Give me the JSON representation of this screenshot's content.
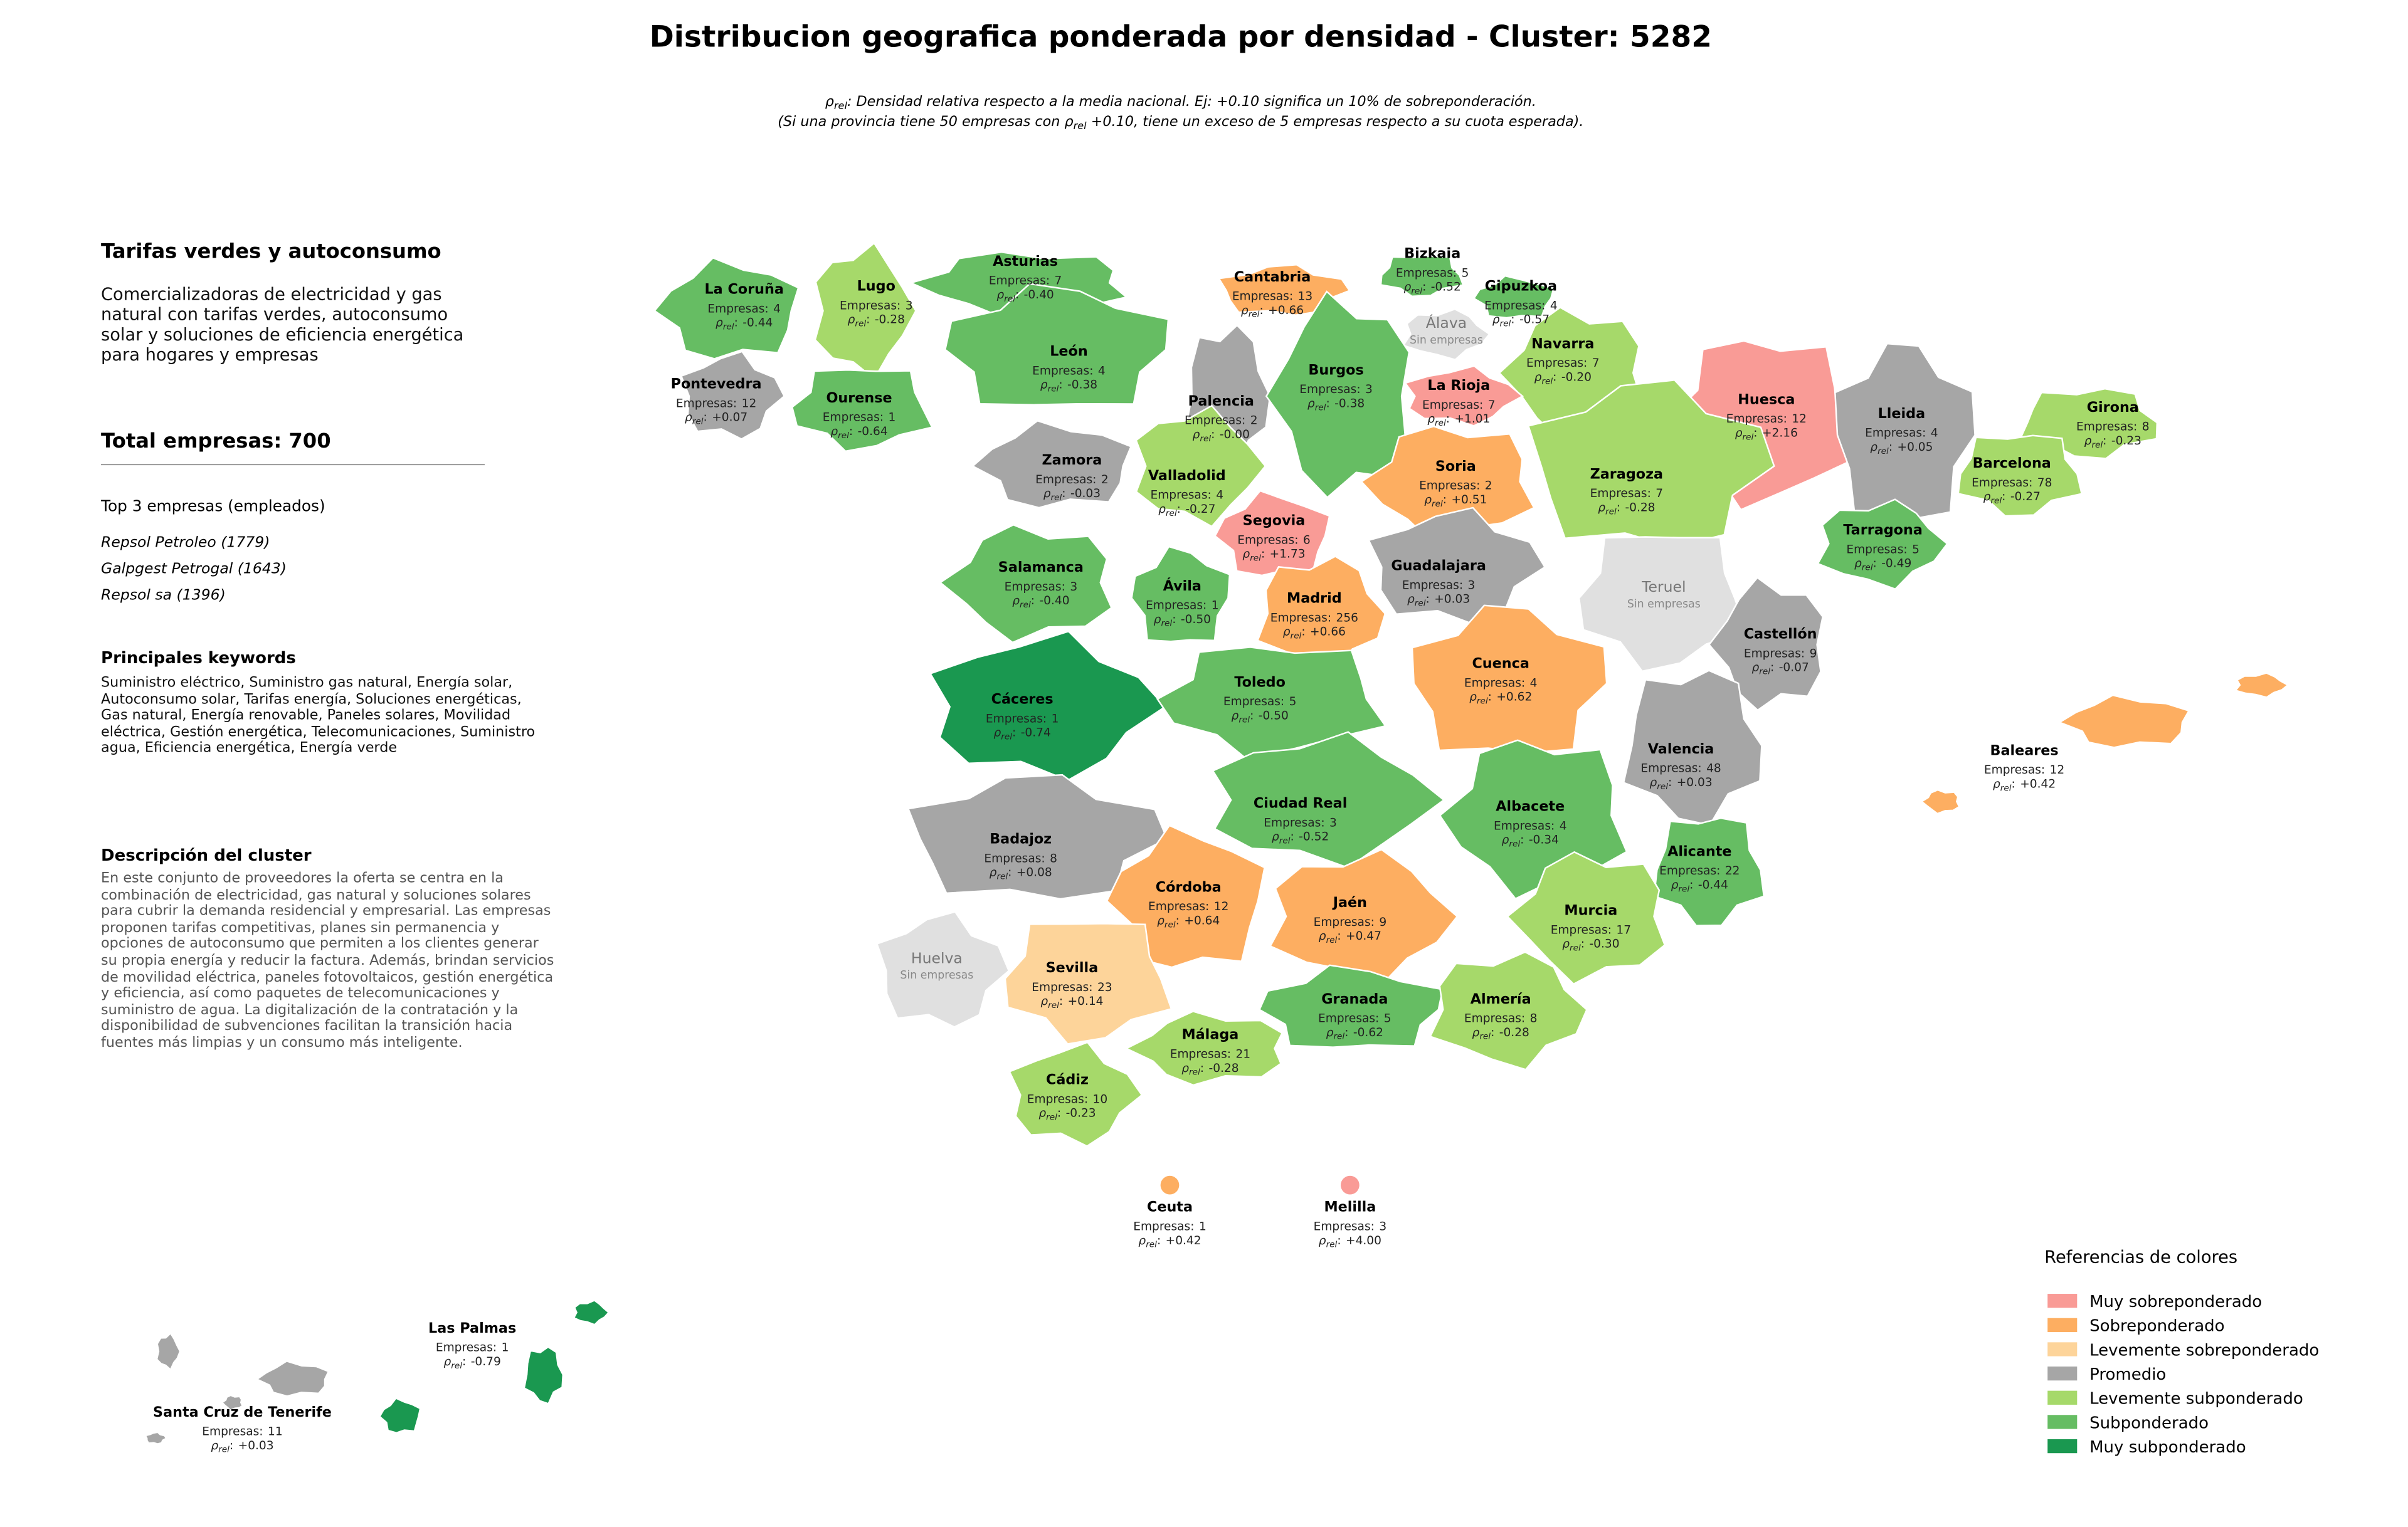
{
  "title": "Distribucion geografica ponderada por densidad - Cluster: 5282",
  "subtitle": {
    "line1": {
      "symbol": "ρ",
      "sub": "rel",
      "text": ": Densidad relativa respecto a la media nacional. Ej: +0.10 significa un 10% de sobreponderación."
    },
    "line2": {
      "before": "(Si una provincia tiene 50 empresas con ",
      "symbol": "ρ",
      "sub": "rel",
      "after": " +0.10, tiene un exceso de 5 empresas respecto a su cuota esperada)."
    }
  },
  "panel": {
    "heading": "Tarifas verdes y autoconsumo",
    "summary": "Comercializadoras de electricidad y gas natural con tarifas verdes, autoconsumo solar y soluciones de eficiencia energética para hogares y empresas",
    "total": "Total empresas: 700",
    "top_title": "Top 3 empresas (empleados)",
    "top": [
      "Repsol Petroleo (1779)",
      "Galpgest Petrogal (1643)",
      "Repsol sa (1396)"
    ],
    "keywords_title": "Principales keywords",
    "keywords": "Suministro eléctrico, Suministro gas natural, Energía solar, Autoconsumo solar, Tarifas energía, Soluciones energéticas, Gas natural, Energía renovable, Paneles solares, Movilidad eléctrica, Gestión energética, Telecomunicaciones, Suministro agua, Eficiencia energética, Energía verde",
    "description_title": "Descripción del cluster",
    "description": "En este conjunto de proveedores la oferta se centra en la combinación de electricidad, gas natural y soluciones solares para cubrir la demanda residencial y empresarial. Las empresas proponen tarifas competitivas, planes sin permanencia y opciones de autoconsumo que permiten a los clientes generar su propia energía y reducir la factura. Además, brindan servicios de movilidad eléctrica, paneles fotovoltaicos, gestión energética y eficiencia, así como paquetes de telecomunicaciones y suministro de agua. La digitalización de la contratación y la disponibilidad de subvenciones facilitan la transición hacia fuentes más limpias y un consumo más inteligente."
  },
  "empresas_label": "Empresas:",
  "rho_label": {
    "symbol": "ρ",
    "sub": "rel",
    "sep": ":"
  },
  "no_data_label": "Sin empresas",
  "provinces": [
    {
      "name": "La Coruña",
      "empresas": 4,
      "rho": "-0.44",
      "color": "#66bd63"
    },
    {
      "name": "Lugo",
      "empresas": 3,
      "rho": "-0.28",
      "color": "#a6d96a"
    },
    {
      "name": "Asturias",
      "empresas": 7,
      "rho": "-0.40",
      "color": "#66bd63"
    },
    {
      "name": "Cantabria",
      "empresas": 13,
      "rho": "+0.66",
      "color": "#fdae61"
    },
    {
      "name": "Bizkaia",
      "empresas": 5,
      "rho": "-0.52",
      "color": "#66bd63"
    },
    {
      "name": "Gipuzkoa",
      "empresas": 4,
      "rho": "-0.57",
      "color": "#66bd63"
    },
    {
      "name": "Álava",
      "color": "#e0e0e0"
    },
    {
      "name": "Navarra",
      "empresas": 7,
      "rho": "-0.20",
      "color": "#a6d96a"
    },
    {
      "name": "Pontevedra",
      "empresas": 12,
      "rho": "+0.07",
      "color": "#a6a6a6"
    },
    {
      "name": "Ourense",
      "empresas": 1,
      "rho": "-0.64",
      "color": "#66bd63"
    },
    {
      "name": "León",
      "empresas": 4,
      "rho": "-0.38",
      "color": "#66bd63"
    },
    {
      "name": "Palencia",
      "empresas": 2,
      "rho": "-0.00",
      "color": "#a6a6a6"
    },
    {
      "name": "Burgos",
      "empresas": 3,
      "rho": "-0.38",
      "color": "#66bd63"
    },
    {
      "name": "La Rioja",
      "empresas": 7,
      "rho": "+1.01",
      "color": "#f99b96"
    },
    {
      "name": "Huesca",
      "empresas": 12,
      "rho": "+2.16",
      "color": "#f99b96"
    },
    {
      "name": "Lleida",
      "empresas": 4,
      "rho": "+0.05",
      "color": "#a6a6a6"
    },
    {
      "name": "Girona",
      "empresas": 8,
      "rho": "-0.23",
      "color": "#a6d96a"
    },
    {
      "name": "Zamora",
      "empresas": 2,
      "rho": "-0.03",
      "color": "#a6a6a6"
    },
    {
      "name": "Valladolid",
      "empresas": 4,
      "rho": "-0.27",
      "color": "#a6d96a"
    },
    {
      "name": "Soria",
      "empresas": 2,
      "rho": "+0.51",
      "color": "#fdae61"
    },
    {
      "name": "Zaragoza",
      "empresas": 7,
      "rho": "-0.28",
      "color": "#a6d96a"
    },
    {
      "name": "Barcelona",
      "empresas": 78,
      "rho": "-0.27",
      "color": "#a6d96a"
    },
    {
      "name": "Segovia",
      "empresas": 6,
      "rho": "+1.73",
      "color": "#f99b96"
    },
    {
      "name": "Tarragona",
      "empresas": 5,
      "rho": "-0.49",
      "color": "#66bd63"
    },
    {
      "name": "Salamanca",
      "empresas": 3,
      "rho": "-0.40",
      "color": "#66bd63"
    },
    {
      "name": "Guadalajara",
      "empresas": 3,
      "rho": "+0.03",
      "color": "#a6a6a6"
    },
    {
      "name": "Teruel",
      "color": "#e0e0e0"
    },
    {
      "name": "Ávila",
      "empresas": 1,
      "rho": "-0.50",
      "color": "#66bd63"
    },
    {
      "name": "Madrid",
      "empresas": 256,
      "rho": "+0.66",
      "color": "#fdae61"
    },
    {
      "name": "Castellón",
      "empresas": 9,
      "rho": "-0.07",
      "color": "#a6a6a6"
    },
    {
      "name": "Cáceres",
      "empresas": 1,
      "rho": "-0.74",
      "color": "#1a9850"
    },
    {
      "name": "Toledo",
      "empresas": 5,
      "rho": "-0.50",
      "color": "#66bd63"
    },
    {
      "name": "Cuenca",
      "empresas": 4,
      "rho": "+0.62",
      "color": "#fdae61"
    },
    {
      "name": "Valencia",
      "empresas": 48,
      "rho": "+0.03",
      "color": "#a6a6a6"
    },
    {
      "name": "Baleares",
      "empresas": 12,
      "rho": "+0.42",
      "color": "#fdae61"
    },
    {
      "name": "Ciudad Real",
      "empresas": 3,
      "rho": "-0.52",
      "color": "#66bd63"
    },
    {
      "name": "Albacete",
      "empresas": 4,
      "rho": "-0.34",
      "color": "#66bd63"
    },
    {
      "name": "Badajoz",
      "empresas": 8,
      "rho": "+0.08",
      "color": "#a6a6a6"
    },
    {
      "name": "Alicante",
      "empresas": 22,
      "rho": "-0.44",
      "color": "#66bd63"
    },
    {
      "name": "Córdoba",
      "empresas": 12,
      "rho": "+0.64",
      "color": "#fdae61"
    },
    {
      "name": "Jaén",
      "empresas": 9,
      "rho": "+0.47",
      "color": "#fdae61"
    },
    {
      "name": "Murcia",
      "empresas": 17,
      "rho": "-0.30",
      "color": "#a6d96a"
    },
    {
      "name": "Huelva",
      "color": "#e0e0e0"
    },
    {
      "name": "Sevilla",
      "empresas": 23,
      "rho": "+0.14",
      "color": "#fdd49a"
    },
    {
      "name": "Granada",
      "empresas": 5,
      "rho": "-0.62",
      "color": "#66bd63"
    },
    {
      "name": "Almería",
      "empresas": 8,
      "rho": "-0.28",
      "color": "#a6d96a"
    },
    {
      "name": "Málaga",
      "empresas": 21,
      "rho": "-0.28",
      "color": "#a6d96a"
    },
    {
      "name": "Cádiz",
      "empresas": 10,
      "rho": "-0.23",
      "color": "#a6d96a"
    },
    {
      "name": "Ceuta",
      "empresas": 1,
      "rho": "+0.42",
      "color": "#fdae61"
    },
    {
      "name": "Melilla",
      "empresas": 3,
      "rho": "+4.00",
      "color": "#f99b96"
    },
    {
      "name": "Las Palmas",
      "empresas": 1,
      "rho": "-0.79",
      "color": "#1a9850"
    },
    {
      "name": "Santa Cruz de Tenerife",
      "empresas": 11,
      "rho": "+0.03",
      "color": "#a6a6a6"
    }
  ],
  "legend": {
    "title": "Referencias de colores",
    "items": [
      {
        "name": "Muy sobreponderado",
        "color": "#f99b96"
      },
      {
        "name": "Sobreponderado",
        "color": "#fdae61"
      },
      {
        "name": "Levemente sobreponderado",
        "color": "#fdd49a"
      },
      {
        "name": "Promedio",
        "color": "#a6a6a6"
      },
      {
        "name": "Levemente subponderado",
        "color": "#a6d96a"
      },
      {
        "name": "Subponderado",
        "color": "#66bd63"
      },
      {
        "name": "Muy subponderado",
        "color": "#1a9850"
      }
    ]
  }
}
